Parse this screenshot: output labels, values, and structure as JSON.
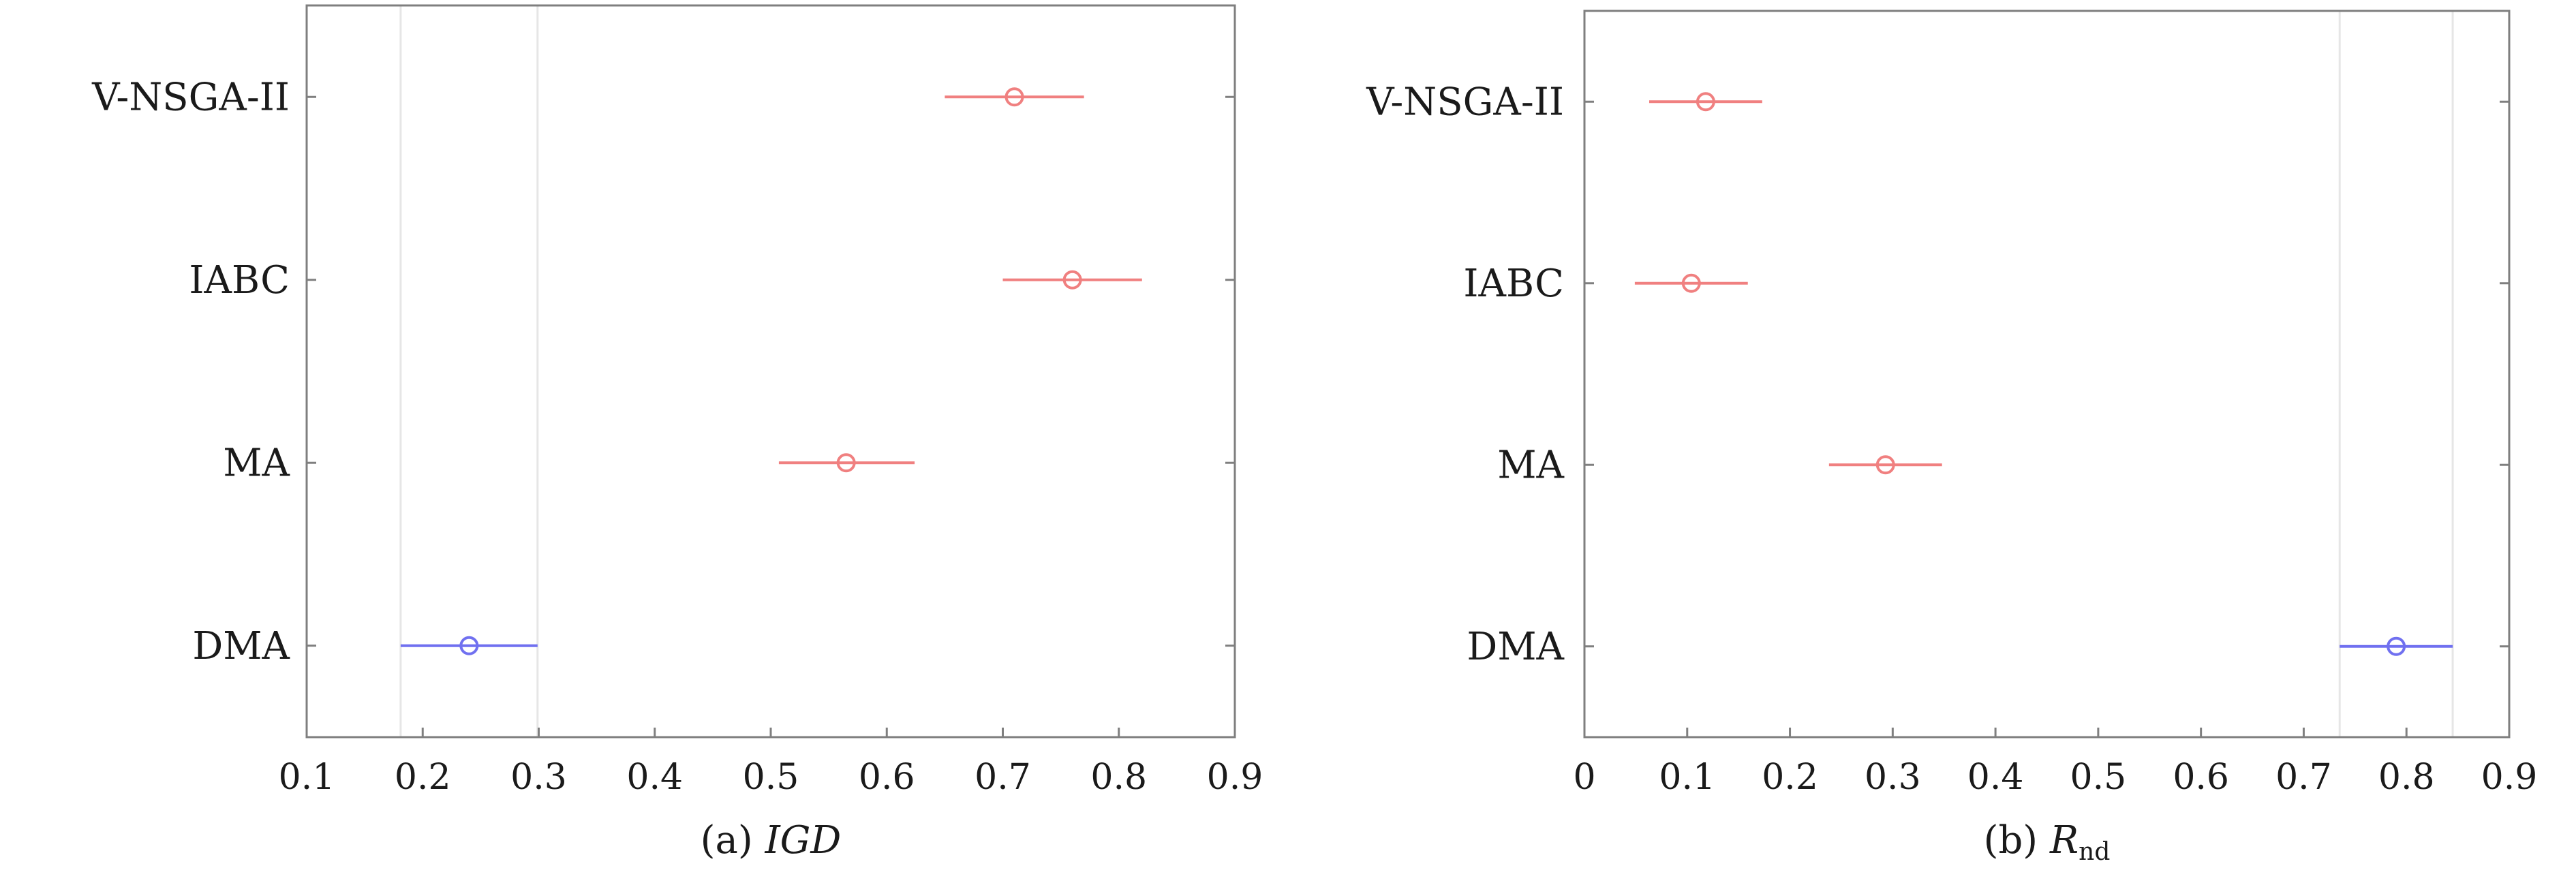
{
  "chart_data": [
    {
      "type": "scatter",
      "subtype": "interval-plot",
      "caption": {
        "prefix": "(a)",
        "metric": "IGD",
        "metric_style": "italic"
      },
      "categories": [
        "V-NSGA-II",
        "IABC",
        "MA",
        "DMA"
      ],
      "points": [
        {
          "category": "V-NSGA-II",
          "mean": 0.71,
          "low": 0.65,
          "high": 0.77,
          "color": "#f08080"
        },
        {
          "category": "IABC",
          "mean": 0.76,
          "low": 0.7,
          "high": 0.82,
          "color": "#f08080"
        },
        {
          "category": "MA",
          "mean": 0.565,
          "low": 0.507,
          "high": 0.624,
          "color": "#f08080"
        },
        {
          "category": "DMA",
          "mean": 0.24,
          "low": 0.181,
          "high": 0.299,
          "color": "#7070f0"
        }
      ],
      "xlim": [
        0.1,
        0.9
      ],
      "xticks": [
        "0.1",
        "0.2",
        "0.3",
        "0.4",
        "0.5",
        "0.6",
        "0.7",
        "0.8",
        "0.9"
      ],
      "comparison_lines": [
        0.181,
        0.299
      ]
    },
    {
      "type": "scatter",
      "subtype": "interval-plot",
      "caption": {
        "prefix": "(b)",
        "metric": "R",
        "metric_sub": "nd",
        "metric_style": "italic"
      },
      "categories": [
        "V-NSGA-II",
        "IABC",
        "MA",
        "DMA"
      ],
      "points": [
        {
          "category": "V-NSGA-II",
          "mean": 0.118,
          "low": 0.063,
          "high": 0.173,
          "color": "#f08080"
        },
        {
          "category": "IABC",
          "mean": 0.104,
          "low": 0.049,
          "high": 0.159,
          "color": "#f08080"
        },
        {
          "category": "MA",
          "mean": 0.293,
          "low": 0.238,
          "high": 0.348,
          "color": "#f08080"
        },
        {
          "category": "DMA",
          "mean": 0.79,
          "low": 0.735,
          "high": 0.845,
          "color": "#7070f0"
        }
      ],
      "xlim": [
        0,
        0.9
      ],
      "xticks": [
        "0",
        "0.1",
        "0.2",
        "0.3",
        "0.4",
        "0.5",
        "0.6",
        "0.7",
        "0.8",
        "0.9"
      ],
      "comparison_lines": [
        0.735,
        0.845
      ]
    }
  ]
}
